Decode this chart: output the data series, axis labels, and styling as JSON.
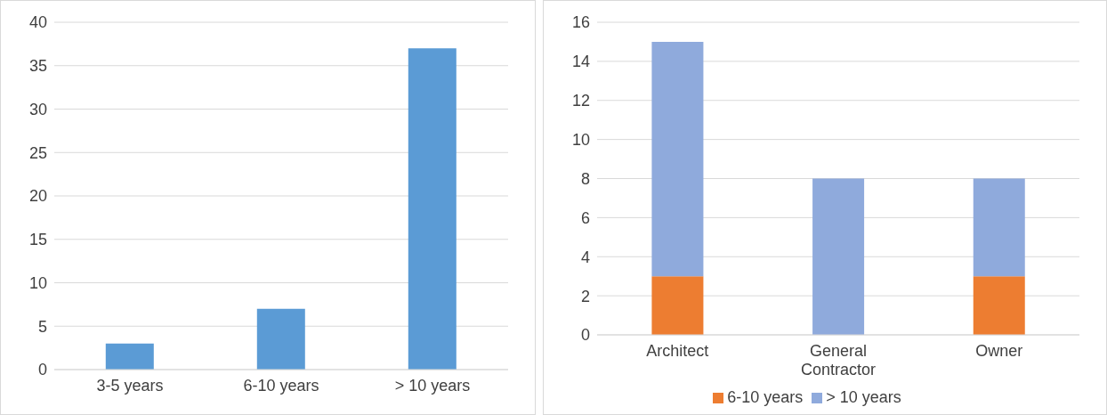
{
  "chart_data": [
    {
      "type": "bar",
      "categories": [
        "3-5 years",
        "6-10 years",
        "> 10 years"
      ],
      "values": [
        3,
        7,
        37
      ],
      "color": "#5b9bd5",
      "ylim": [
        0,
        40
      ],
      "yticks": [
        0,
        5,
        10,
        15,
        20,
        25,
        30,
        35,
        40
      ],
      "grid": "y",
      "legend": false
    },
    {
      "type": "bar",
      "stacked": true,
      "categories": [
        "Architect",
        "General Contractor",
        "Owner"
      ],
      "series": [
        {
          "name": "6-10 years",
          "color": "#ed7d31",
          "values": [
            3,
            0,
            3
          ]
        },
        {
          "name": "> 10 years",
          "color": "#8faadc",
          "values": [
            12,
            8,
            5
          ]
        }
      ],
      "ylim": [
        0,
        16
      ],
      "yticks": [
        0,
        2,
        4,
        6,
        8,
        10,
        12,
        14,
        16
      ],
      "grid": "y",
      "legend": "bottom"
    }
  ]
}
